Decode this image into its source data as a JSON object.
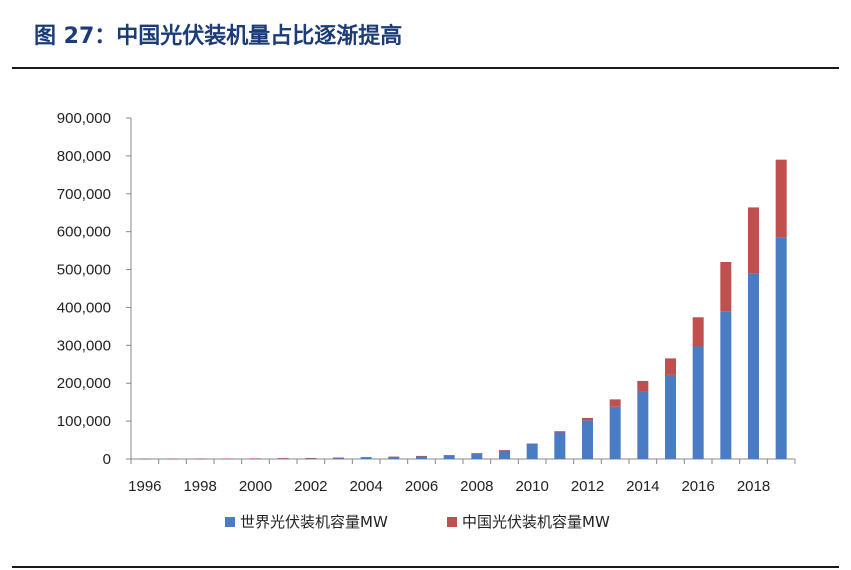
{
  "figure": {
    "title": "图 27：中国光伏装机量占比逐渐提高"
  },
  "chart_data": {
    "type": "bar",
    "stacked": true,
    "categories": [
      "1996",
      "1997",
      "1998",
      "1999",
      "2000",
      "2001",
      "2002",
      "2003",
      "2004",
      "2005",
      "2006",
      "2007",
      "2008",
      "2009",
      "2010",
      "2011",
      "2012",
      "2013",
      "2014",
      "2015",
      "2016",
      "2017",
      "2018",
      "2019"
    ],
    "x_tick_labels": [
      "1996",
      "1998",
      "2000",
      "2002",
      "2004",
      "2006",
      "2008",
      "2010",
      "2012",
      "2014",
      "2016",
      "2018"
    ],
    "series": [
      {
        "name": "世界光伏装机容量MW",
        "color": "#4a7cc4",
        "values": [
          500,
          700,
          900,
          1200,
          1500,
          2000,
          2600,
          3500,
          4600,
          6000,
          8000,
          10000,
          15000,
          23000,
          40000,
          70000,
          102000,
          138000,
          178000,
          222000,
          297000,
          390000,
          490000,
          585000
        ]
      },
      {
        "name": "中国光伏装机容量MW",
        "color": "#c0504d",
        "values": [
          10,
          10,
          10,
          20,
          20,
          20,
          30,
          50,
          60,
          70,
          80,
          100,
          140,
          300,
          800,
          3300,
          6500,
          19400,
          28000,
          43500,
          77000,
          130000,
          174000,
          205000
        ]
      }
    ],
    "y_ticks": [
      "0",
      "100,000",
      "200,000",
      "300,000",
      "400,000",
      "500,000",
      "600,000",
      "700,000",
      "800,000",
      "900,000"
    ],
    "ylim": [
      0,
      900000
    ],
    "grid": false,
    "legend": "bottom"
  }
}
